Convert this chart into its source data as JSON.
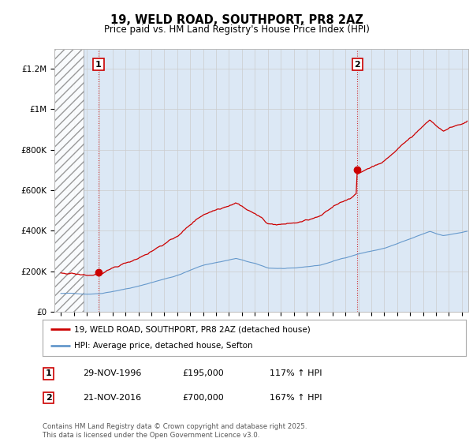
{
  "title": "19, WELD ROAD, SOUTHPORT, PR8 2AZ",
  "subtitle": "Price paid vs. HM Land Registry's House Price Index (HPI)",
  "ylim": [
    0,
    1300000
  ],
  "xlim": [
    1993.5,
    2025.5
  ],
  "yticks": [
    0,
    200000,
    400000,
    600000,
    800000,
    1000000,
    1200000
  ],
  "ytick_labels": [
    "£0",
    "£200K",
    "£400K",
    "£600K",
    "£800K",
    "£1M",
    "£1.2M"
  ],
  "xticks": [
    1994,
    1995,
    1996,
    1997,
    1998,
    1999,
    2000,
    2001,
    2002,
    2003,
    2004,
    2005,
    2006,
    2007,
    2008,
    2009,
    2010,
    2011,
    2012,
    2013,
    2014,
    2015,
    2016,
    2017,
    2018,
    2019,
    2020,
    2021,
    2022,
    2023,
    2024,
    2025
  ],
  "sale1_x": 1996.917,
  "sale1_y": 195000,
  "sale2_x": 2016.917,
  "sale2_y": 700000,
  "hatch_end_x": 1995.75,
  "red_line_color": "#cc0000",
  "blue_line_color": "#6699cc",
  "background_color": "#ffffff",
  "plot_bg_color": "#dce8f5",
  "grid_color": "#cccccc",
  "legend1_label": "19, WELD ROAD, SOUTHPORT, PR8 2AZ (detached house)",
  "legend2_label": "HPI: Average price, detached house, Sefton",
  "table_row1": [
    "1",
    "29-NOV-1996",
    "£195,000",
    "117% ↑ HPI"
  ],
  "table_row2": [
    "2",
    "21-NOV-2016",
    "£700,000",
    "167% ↑ HPI"
  ],
  "footer": "Contains HM Land Registry data © Crown copyright and database right 2025.\nThis data is licensed under the Open Government Licence v3.0."
}
